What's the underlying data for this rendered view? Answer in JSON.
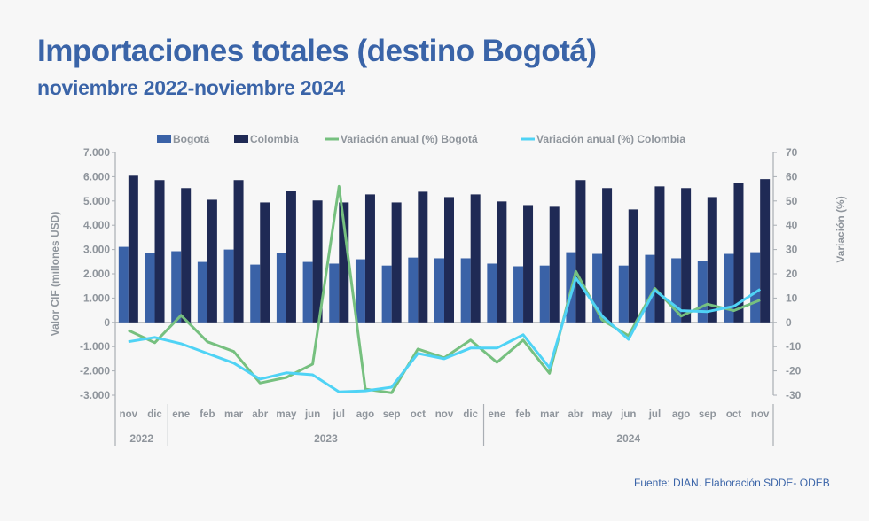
{
  "header": {
    "title": "Importaciones totales (destino Bogotá)",
    "subtitle": "noviembre 2022-noviembre 2024"
  },
  "footer": {
    "source": "Fuente: DIAN. Elaboración SDDE- ODEB"
  },
  "colors": {
    "bogota_bar": "#3a62a7",
    "colombia_bar": "#1f2a55",
    "bogota_line": "#76c07f",
    "colombia_line": "#4fd3f5",
    "axis_text": "#8f959c"
  },
  "chart_data": {
    "type": "bar",
    "title": "Importaciones totales (destino Bogotá)",
    "legend_position": "top",
    "legend": [
      "Bogotá",
      "Colombia",
      "Variación anual (%) Bogotá",
      "Variación anual (%) Colombia"
    ],
    "categories": [
      "nov",
      "dic",
      "ene",
      "feb",
      "mar",
      "abr",
      "may",
      "jun",
      "jul",
      "ago",
      "sep",
      "oct",
      "nov",
      "dic",
      "ene",
      "feb",
      "mar",
      "abr",
      "may",
      "jun",
      "jul",
      "ago",
      "sep",
      "oct",
      "nov"
    ],
    "year_groups": [
      {
        "label": "2022",
        "count": 2
      },
      {
        "label": "2023",
        "count": 12
      },
      {
        "label": "2024",
        "count": 11
      }
    ],
    "ylabel": "Valor CIF (millones USD)",
    "ylim": [
      -3000,
      7000
    ],
    "yticks": [
      "7.000",
      "6.000",
      "5.000",
      "4.000",
      "3.000",
      "2.000",
      "1.000",
      "0",
      "-1.000",
      "-2.000",
      "-3.000"
    ],
    "y2label": "Variación (%)",
    "y2lim": [
      -30,
      70
    ],
    "y2ticks": [
      "70",
      "60",
      "50",
      "40",
      "30",
      "20",
      "10",
      "0",
      "-10",
      "-20",
      "-30"
    ],
    "grid": false,
    "series": [
      {
        "name": "Bogotá",
        "type": "bar",
        "axis": "left",
        "values": [
          3110,
          2860,
          2930,
          2490,
          3000,
          2380,
          2860,
          2490,
          2420,
          2600,
          2340,
          2670,
          2640,
          2640,
          2420,
          2310,
          2340,
          2890,
          2820,
          2340,
          2780,
          2640,
          2530,
          2820,
          2890
        ]
      },
      {
        "name": "Colombia",
        "type": "bar",
        "axis": "left",
        "values": [
          6040,
          5860,
          5530,
          5050,
          5860,
          4940,
          5420,
          5020,
          4940,
          5270,
          4940,
          5380,
          5160,
          5270,
          4980,
          4830,
          4760,
          5860,
          5530,
          4650,
          5600,
          5530,
          5160,
          5750,
          5900
        ]
      },
      {
        "name": "Variación anual (%) Bogotá",
        "type": "line",
        "axis": "right",
        "values": [
          -3.3,
          -8.4,
          2.9,
          -8.0,
          -12.0,
          -25.0,
          -22.7,
          -17.2,
          56.0,
          -27.5,
          -29.0,
          -11.0,
          -14.6,
          -7.3,
          -16.5,
          -7.3,
          -21.0,
          21.0,
          1.0,
          -5.5,
          14.0,
          2.6,
          7.5,
          4.8,
          9.2
        ]
      },
      {
        "name": "Variación anual (%) Colombia",
        "type": "line",
        "axis": "right",
        "values": [
          -8.0,
          -6.2,
          -8.8,
          -12.8,
          -16.8,
          -23.4,
          -20.8,
          -21.6,
          -28.6,
          -28.2,
          -26.7,
          -12.8,
          -15.0,
          -10.6,
          -10.6,
          -5.1,
          -18.7,
          18.3,
          2.6,
          -7.0,
          13.2,
          4.8,
          4.4,
          6.6,
          13.6
        ]
      }
    ]
  }
}
